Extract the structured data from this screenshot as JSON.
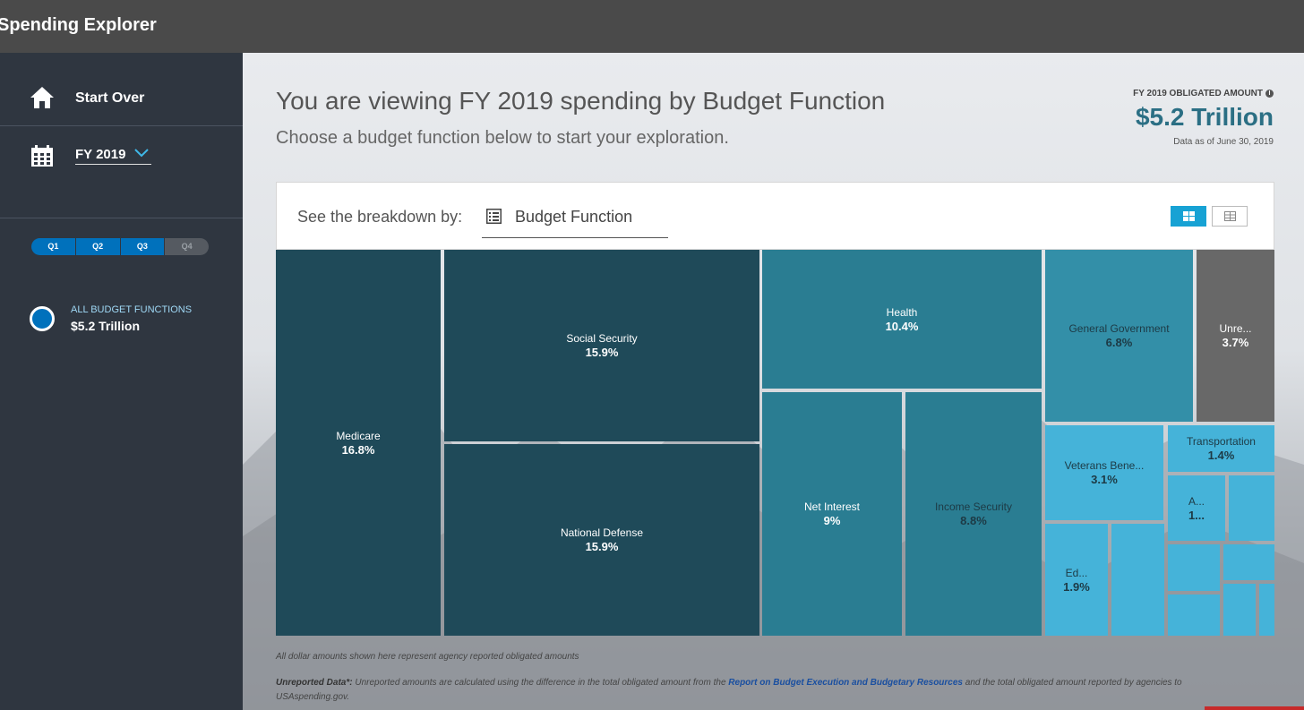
{
  "app": {
    "title": "Spending Explorer"
  },
  "sidebar": {
    "start_over": "Start Over",
    "fiscal_year": "FY 2019",
    "quarters": [
      "Q1",
      "Q2",
      "Q3",
      "Q4"
    ],
    "selection_label": "ALL BUDGET FUNCTIONS",
    "selection_value": "$5.2 Trillion"
  },
  "header": {
    "headline": "You are viewing FY 2019 spending by Budget Function",
    "subhead": "Choose a budget function below to start your exploration.",
    "total_label": "FY 2019 OBLIGATED AMOUNT",
    "total_value": "$5.2 Trillion",
    "data_date": "Data as of June 30, 2019"
  },
  "breakdown": {
    "label": "See the breakdown by:",
    "value": "Budget Function"
  },
  "treemap": {
    "tiles": [
      {
        "name": "Medicare",
        "pct": "16.8%"
      },
      {
        "name": "Social Security",
        "pct": "15.9%"
      },
      {
        "name": "National Defense",
        "pct": "15.9%"
      },
      {
        "name": "Health",
        "pct": "10.4%"
      },
      {
        "name": "Net Interest",
        "pct": "9%"
      },
      {
        "name": "Income Security",
        "pct": "8.8%"
      },
      {
        "name": "General Government",
        "pct": "6.8%"
      },
      {
        "name": "Unre...",
        "pct": "3.7%"
      },
      {
        "name": "Veterans Bene...",
        "pct": "3.1%"
      },
      {
        "name": "Transportation",
        "pct": "1.4%"
      },
      {
        "name": "A...",
        "pct": "1..."
      },
      {
        "name": "Ed...",
        "pct": "1.9%"
      }
    ]
  },
  "notes": {
    "note1": "All dollar amounts shown here represent agency reported obligated amounts",
    "unreported_label": "Unreported Data*:",
    "unreported_text": "Unreported amounts are calculated using the difference in the total obligated amount from the",
    "report_link": "Report on Budget Execution and Budgetary Resources",
    "unreported_tail": "and the total obligated amount reported by agencies to USAspending.gov."
  },
  "colors": {
    "darkest": "#1f4a59",
    "dark": "#2a7d92",
    "mid": "#338fa8",
    "light": "#45b3d9",
    "unreported": "#686868",
    "accent": "#0071bc"
  }
}
